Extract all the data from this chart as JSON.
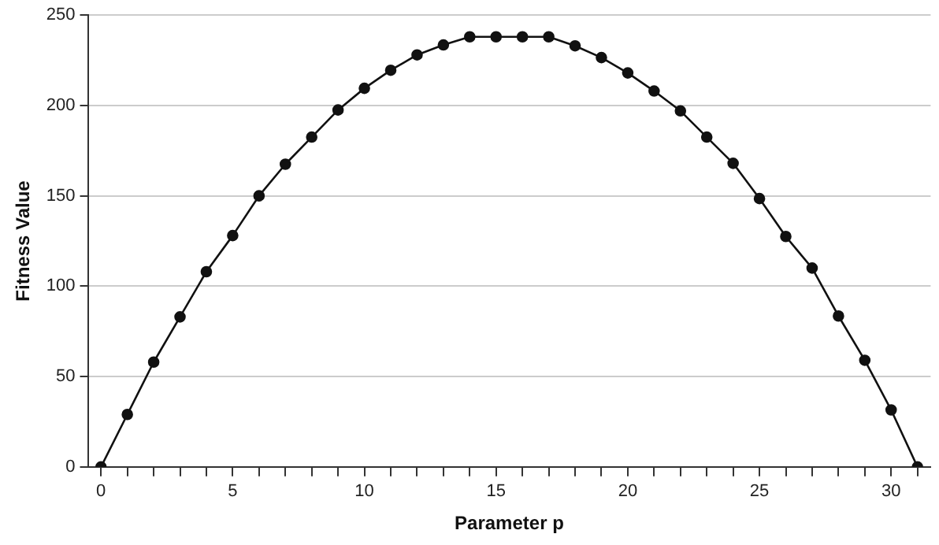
{
  "chart_data": {
    "type": "line",
    "xlabel": "Parameter p",
    "ylabel": "Fitness Value",
    "x": [
      0,
      1,
      2,
      3,
      4,
      5,
      6,
      7,
      8,
      9,
      10,
      11,
      12,
      13,
      14,
      15,
      16,
      17,
      18,
      19,
      20,
      21,
      22,
      23,
      24,
      25,
      26,
      27,
      28,
      29,
      30,
      31
    ],
    "series": [
      {
        "color": "#111111",
        "values": [
          0,
          29,
          58,
          83,
          108,
          128,
          150,
          167.5,
          182.5,
          197.5,
          209.5,
          219.5,
          228,
          233.5,
          238,
          238,
          238,
          238,
          233,
          226.5,
          218,
          208,
          197,
          182.5,
          168,
          148.5,
          127.5,
          110,
          83.5,
          59,
          31.5,
          0
        ]
      }
    ],
    "xlim": [
      -0.5,
      31.5
    ],
    "xticks": [
      0,
      {
        "value": 1,
        "label": null
      },
      {
        "value": 2,
        "label": null
      },
      {
        "value": 3,
        "label": null
      },
      {
        "value": 4,
        "label": null
      },
      5,
      {
        "value": 6,
        "label": null
      },
      {
        "value": 7,
        "label": null
      },
      {
        "value": 8,
        "label": null
      },
      {
        "value": 9,
        "label": null
      },
      10,
      {
        "value": 11,
        "label": null
      },
      {
        "value": 12,
        "label": null
      },
      {
        "value": 13,
        "label": null
      },
      {
        "value": 14,
        "label": null
      },
      15,
      {
        "value": 16,
        "label": null
      },
      {
        "value": 17,
        "label": null
      },
      {
        "value": 18,
        "label": null
      },
      {
        "value": 19,
        "label": null
      },
      20,
      {
        "value": 21,
        "label": null
      },
      {
        "value": 22,
        "label": null
      },
      {
        "value": 23,
        "label": null
      },
      {
        "value": 24,
        "label": null
      },
      25,
      {
        "value": 26,
        "label": null
      },
      {
        "value": 27,
        "label": null
      },
      {
        "value": 28,
        "label": null
      },
      {
        "value": 29,
        "label": null
      },
      30,
      {
        "value": 31,
        "label": null
      }
    ],
    "ylim": [
      0,
      250
    ],
    "yticks": [
      0,
      50,
      100,
      150,
      200,
      250
    ],
    "grid": "y",
    "legend": false,
    "marker": "circle",
    "line_style": "solid"
  }
}
